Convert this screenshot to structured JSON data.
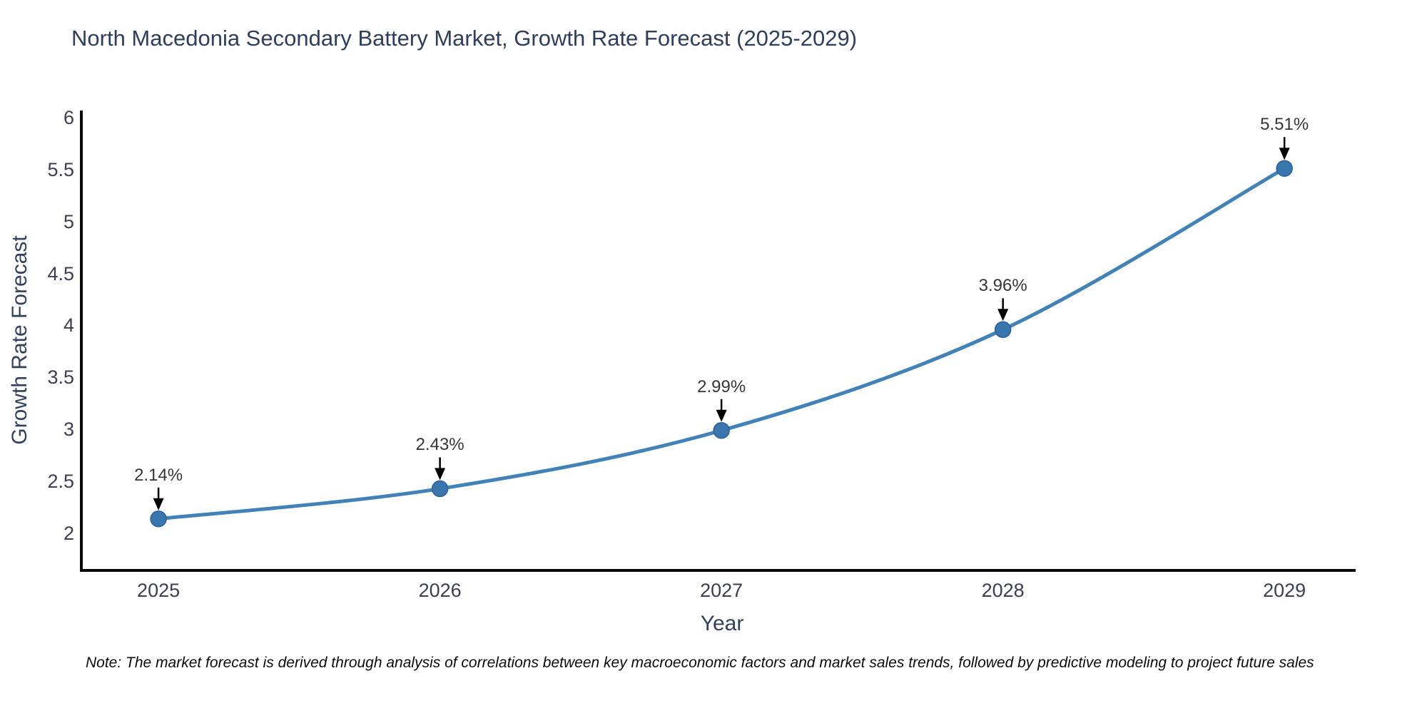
{
  "title": "North Macedonia Secondary Battery Market, Growth Rate Forecast (2025-2029)",
  "note": "Note: The market forecast is derived through analysis of correlations between key macroeconomic factors and market sales trends, followed by predictive modeling to project future sales",
  "chart_data": {
    "type": "line",
    "title": "North Macedonia Secondary Battery Market, Growth Rate Forecast (2025-2029)",
    "xlabel": "Year",
    "ylabel": "Growth Rate Forecast",
    "x": [
      2025,
      2026,
      2027,
      2028,
      2029
    ],
    "values": [
      2.14,
      2.43,
      2.99,
      3.96,
      5.51
    ],
    "point_labels": [
      "2.14%",
      "2.43%",
      "2.99%",
      "3.96%",
      "5.51%"
    ],
    "xticks": [
      "2025",
      "2026",
      "2027",
      "2028",
      "2029"
    ],
    "yticks": [
      2,
      2.5,
      3,
      3.5,
      4,
      4.5,
      5,
      5.5,
      6
    ],
    "ytick_labels": [
      "2",
      "2.5",
      "3",
      "3.5",
      "4",
      "4.5",
      "5",
      "5.5",
      "6"
    ],
    "xlim": [
      2024.726,
      2029.253
    ],
    "ylim": [
      1.6444,
      6.0667
    ],
    "line_shape": "spline",
    "grid": false,
    "legend": "none",
    "colors": {
      "line": "#4182b8",
      "marker_fill": "#3876ad",
      "marker_edge": "#2c619b",
      "axis_line": "#0a0a0a",
      "arrow": "#000000",
      "title_text": "#2e3e5c",
      "tick_text": "#3d3d58",
      "annotation_text": "#363636"
    }
  }
}
